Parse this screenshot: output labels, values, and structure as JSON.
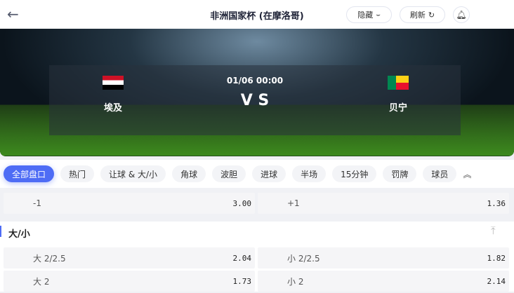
{
  "header": {
    "title": "非洲国家杯 (在摩洛哥)",
    "hide_label": "隐藏",
    "refresh_label": "刷新"
  },
  "match": {
    "time": "01/06 00:00",
    "vs": "V S",
    "home": "埃及",
    "away": "贝宁"
  },
  "tabs": [
    "全部盘口",
    "热门",
    "让球 & 大/小",
    "角球",
    "波胆",
    "进球",
    "半场",
    "15分钟",
    "罚牌",
    "球员"
  ],
  "handicap_row": [
    {
      "label": "-1",
      "odds": "3.00"
    },
    {
      "label": "+1",
      "odds": "1.36"
    }
  ],
  "section": {
    "title": "大/小",
    "rows": [
      [
        {
          "label": "大 2/2.5",
          "odds": "2.04"
        },
        {
          "label": "小 2/2.5",
          "odds": "1.82"
        }
      ],
      [
        {
          "label": "大 2",
          "odds": "1.73"
        },
        {
          "label": "小 2",
          "odds": "2.14"
        }
      ]
    ]
  },
  "colors": {
    "accent": "#4e6cf5"
  }
}
